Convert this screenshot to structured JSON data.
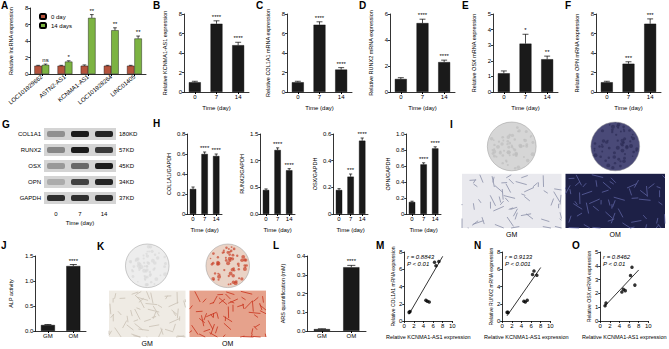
{
  "chart_data": [
    {
      "title": "A",
      "type": "bar",
      "ylabel": "Relative lncRNA expression",
      "categories": [
        "LOC101929662",
        "ASTN2-AS1",
        "KCNMA1-AS1",
        "LOC101928264",
        "LINC01405"
      ],
      "series": [
        {
          "name": "0 day",
          "color": "#b5533c",
          "values": [
            1,
            1,
            1,
            1,
            1
          ],
          "errors": [
            0.05,
            0.05,
            0.1,
            0.05,
            0.05
          ]
        },
        {
          "name": "14 days",
          "color": "#7cb342",
          "values": [
            1.1,
            1.5,
            6.8,
            5.3,
            4.3
          ],
          "errors": [
            0.1,
            0.1,
            0.4,
            0.3,
            0.3
          ],
          "annotations": [
            "ns",
            "*",
            "**",
            "**",
            "**"
          ]
        }
      ],
      "ylim": [
        0,
        8
      ],
      "yticks": [
        0,
        2,
        4,
        6,
        8
      ],
      "legend": "top-left"
    },
    {
      "title": "B",
      "type": "bar",
      "xlabel": "Time (day)",
      "ylabel": "Relative KCNMA1-AS1 expression",
      "categories": [
        0,
        7,
        14
      ],
      "values": [
        1,
        7,
        4.8
      ],
      "errors": [
        0.1,
        0.3,
        0.3
      ],
      "annotations": [
        null,
        "****",
        "****"
      ],
      "color": "#1a1a1a",
      "ylim": [
        0,
        8
      ],
      "yticks": [
        0,
        2,
        4,
        6,
        8
      ]
    },
    {
      "title": "C",
      "type": "bar",
      "xlabel": "Time (day)",
      "ylabel": "Relative COL1A1 mRNA expression",
      "categories": [
        0,
        7,
        14
      ],
      "values": [
        1,
        6.9,
        2.3
      ],
      "errors": [
        0.1,
        0.3,
        0.2
      ],
      "annotations": [
        null,
        "****",
        "****"
      ],
      "color": "#1a1a1a",
      "ylim": [
        0,
        8
      ],
      "yticks": [
        0,
        2,
        4,
        6,
        8
      ]
    },
    {
      "title": "D",
      "type": "bar",
      "xlabel": "Time (day)",
      "ylabel": "Relative RUNX2 mRNA expression",
      "categories": [
        0,
        7,
        14
      ],
      "values": [
        1,
        5.3,
        2.3
      ],
      "errors": [
        0.1,
        0.3,
        0.15
      ],
      "annotations": [
        null,
        "****",
        "****"
      ],
      "color": "#1a1a1a",
      "ylim": [
        0,
        6
      ],
      "yticks": [
        0,
        2,
        4,
        6
      ]
    },
    {
      "title": "E",
      "type": "bar",
      "xlabel": "Time (day)",
      "ylabel": "Relative OSX mRNA expression",
      "categories": [
        0,
        7,
        14
      ],
      "values": [
        1.2,
        3.1,
        2.1
      ],
      "errors": [
        0.15,
        0.6,
        0.2
      ],
      "annotations": [
        null,
        "*",
        "**"
      ],
      "color": "#1a1a1a",
      "ylim": [
        0,
        5
      ],
      "yticks": [
        0,
        1,
        2,
        3,
        4,
        5
      ]
    },
    {
      "title": "F",
      "type": "bar",
      "xlabel": "Time (day)",
      "ylabel": "Relative OPN mRNA expression",
      "categories": [
        0,
        7,
        14
      ],
      "values": [
        1,
        2.9,
        7
      ],
      "errors": [
        0.1,
        0.2,
        0.5
      ],
      "annotations": [
        null,
        "***",
        "***"
      ],
      "color": "#1a1a1a",
      "ylim": [
        0,
        8
      ],
      "yticks": [
        0,
        2,
        4,
        6,
        8
      ]
    },
    {
      "title": "H",
      "type": "bar",
      "xlabel": "Time (day)",
      "ylabel": "COL1A1/GAPDH",
      "categories": [
        0,
        7,
        14
      ],
      "values": [
        0.25,
        0.6,
        0.58
      ],
      "errors": [
        0.02,
        0.02,
        0.02
      ],
      "annotations": [
        null,
        "****",
        "****"
      ],
      "color": "#1a1a1a",
      "ylim": [
        0,
        0.8
      ],
      "yticks": [
        0,
        0.2,
        0.4,
        0.6,
        0.8
      ]
    },
    {
      "type": "bar",
      "xlabel": "Time (day)",
      "ylabel": "RUNX2/GAPDH",
      "categories": [
        0,
        7,
        14
      ],
      "values": [
        0.45,
        1.2,
        0.82
      ],
      "errors": [
        0.02,
        0.04,
        0.03
      ],
      "annotations": [
        null,
        "****",
        "****"
      ],
      "color": "#1a1a1a",
      "ylim": [
        0,
        1.5
      ],
      "yticks": [
        {
          "value": 0,
          "label": "0.0"
        },
        0.5,
        {
          "value": 1,
          "label": "1.0"
        },
        1.5
      ]
    },
    {
      "type": "bar",
      "xlabel": "Time (day)",
      "ylabel": "OSX/GAPDH",
      "categories": [
        0,
        7,
        14
      ],
      "values": [
        0.18,
        0.28,
        0.55
      ],
      "errors": [
        0.01,
        0.02,
        0.02
      ],
      "annotations": [
        null,
        "***",
        "****"
      ],
      "color": "#1a1a1a",
      "ylim": [
        0,
        0.6
      ],
      "yticks": [
        0,
        0.2,
        0.4,
        0.6
      ]
    },
    {
      "type": "bar",
      "xlabel": "Time (day)",
      "ylabel": "OPN/GAPDH",
      "categories": [
        0,
        7,
        14
      ],
      "values": [
        0.15,
        0.62,
        0.82
      ],
      "errors": [
        0.01,
        0.02,
        0.02
      ],
      "annotations": [
        null,
        "****",
        "****"
      ],
      "color": "#1a1a1a",
      "ylim": [
        0,
        1
      ],
      "yticks": [
        0,
        0.2,
        0.4,
        0.6,
        0.8,
        {
          "value": 1,
          "label": "1.0"
        }
      ]
    },
    {
      "title": "J",
      "type": "bar",
      "ylabel": "ALP activity",
      "categories": [
        "GM",
        "OM"
      ],
      "values": [
        0.12,
        1.3
      ],
      "errors": [
        0.01,
        0.03
      ],
      "annotations": [
        null,
        "****"
      ],
      "color": "#1a1a1a",
      "ylim": [
        0,
        1.5
      ],
      "yticks": [
        {
          "value": 0,
          "label": "0.0"
        },
        0.5,
        {
          "value": 1,
          "label": "1.0"
        },
        1.5
      ]
    },
    {
      "title": "L",
      "type": "bar",
      "ylabel": "ARS quantification (mM)",
      "categories": [
        "GM",
        "OM"
      ],
      "values": [
        0.01,
        0.34
      ],
      "errors": [
        0.002,
        0.01
      ],
      "annotations": [
        null,
        "****"
      ],
      "color": "#1a1a1a",
      "ylim": [
        0,
        0.4
      ],
      "yticks": [
        {
          "value": 0,
          "label": "0.0"
        },
        0.1,
        0.2,
        0.3,
        0.4
      ]
    },
    {
      "title": "M",
      "type": "scatter",
      "xlabel": "Relative KCNMA1-AS1 expression",
      "ylabel": "Relative COL1A1 mRNA expression",
      "x": [
        1,
        1.2,
        4.5,
        4.8,
        5.2,
        6.3,
        6.6,
        7.2
      ],
      "values": [
        1,
        1.1,
        2.4,
        2.3,
        2.2,
        6.8,
        6.4,
        6.9
      ],
      "fit": {
        "x": [
          1,
          8
        ],
        "y": [
          0.8,
          7.5
        ]
      },
      "annotations": [
        "r = 0.8843",
        "P < 0.01"
      ],
      "color": "#000000",
      "xlim": [
        0,
        10
      ],
      "xticks": [
        0,
        2,
        4,
        6,
        8,
        10
      ],
      "ylim": [
        0,
        8
      ],
      "yticks": [
        0,
        2,
        4,
        6,
        8
      ]
    },
    {
      "title": "N",
      "type": "scatter",
      "xlabel": "Relative KCNMA1-AS1 expression",
      "ylabel": "Relative RUNX2 mRNA expression",
      "x": [
        1,
        1.2,
        4.5,
        4.8,
        5.2,
        6.3,
        6.6,
        7.2
      ],
      "values": [
        1,
        1,
        2.3,
        2.2,
        2.4,
        5.4,
        5.8,
        5.3
      ],
      "fit": {
        "x": [
          1,
          8
        ],
        "y": [
          0.6,
          6.2
        ]
      },
      "annotations": [
        "r = 0.9133",
        "P < 0.001"
      ],
      "color": "#000000",
      "xlim": [
        0,
        10
      ],
      "xticks": [
        0,
        2,
        4,
        6,
        8,
        10
      ],
      "ylim": [
        0,
        8
      ],
      "yticks": [
        0,
        2,
        4,
        6,
        8
      ]
    },
    {
      "title": "O",
      "type": "scatter",
      "xlabel": "Relative KCNMA1-AS1 expression",
      "ylabel": "Relative OSX mRNA expression",
      "x": [
        1,
        1.2,
        4.5,
        4.8,
        5.2,
        6.3,
        6.6,
        7.2
      ],
      "values": [
        1.1,
        1.3,
        2.1,
        2.3,
        2.2,
        3.3,
        3.9,
        2.6
      ],
      "fit": {
        "x": [
          1,
          8
        ],
        "y": [
          1.1,
          3.7
        ]
      },
      "annotations": [
        "r = 0.8462",
        "P < 0.01"
      ],
      "color": "#000000",
      "xlim": [
        0,
        10
      ],
      "xticks": [
        0,
        2,
        4,
        6,
        8,
        10
      ],
      "ylim": [
        0,
        5
      ],
      "yticks": [
        0,
        1,
        2,
        3,
        4,
        5
      ]
    }
  ],
  "western_blot": {
    "title": "G",
    "bands": [
      {
        "protein": "COL1A1",
        "size": "180KD"
      },
      {
        "protein": "RUNX2",
        "size": "57KD"
      },
      {
        "protein": "OSX",
        "size": "45KD"
      },
      {
        "protein": "OPN",
        "size": "34KD"
      },
      {
        "protein": "GAPDH",
        "size": "37KD"
      }
    ],
    "lanes": [
      0,
      7,
      14
    ],
    "xlabel": "Time (day)"
  },
  "staining": [
    {
      "title": "I",
      "conditions": [
        "GM",
        "OM"
      ]
    },
    {
      "title": "K",
      "conditions": [
        "GM",
        "OM"
      ]
    }
  ]
}
